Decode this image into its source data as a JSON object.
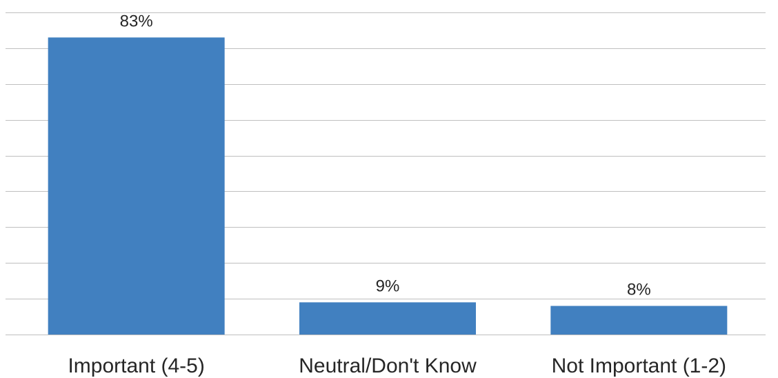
{
  "chart_data": {
    "type": "bar",
    "categories": [
      "Important (4-5)",
      "Neutral/Don't Know",
      "Not Important (1-2)"
    ],
    "values": [
      83,
      9,
      8
    ],
    "data_labels": [
      "83%",
      "9%",
      "8%"
    ],
    "title": "",
    "xlabel": "",
    "ylabel": "",
    "ylim": [
      0,
      90
    ],
    "ytick_step": 10,
    "grid": true,
    "legend": "none",
    "bar_color": "#4180c0"
  }
}
